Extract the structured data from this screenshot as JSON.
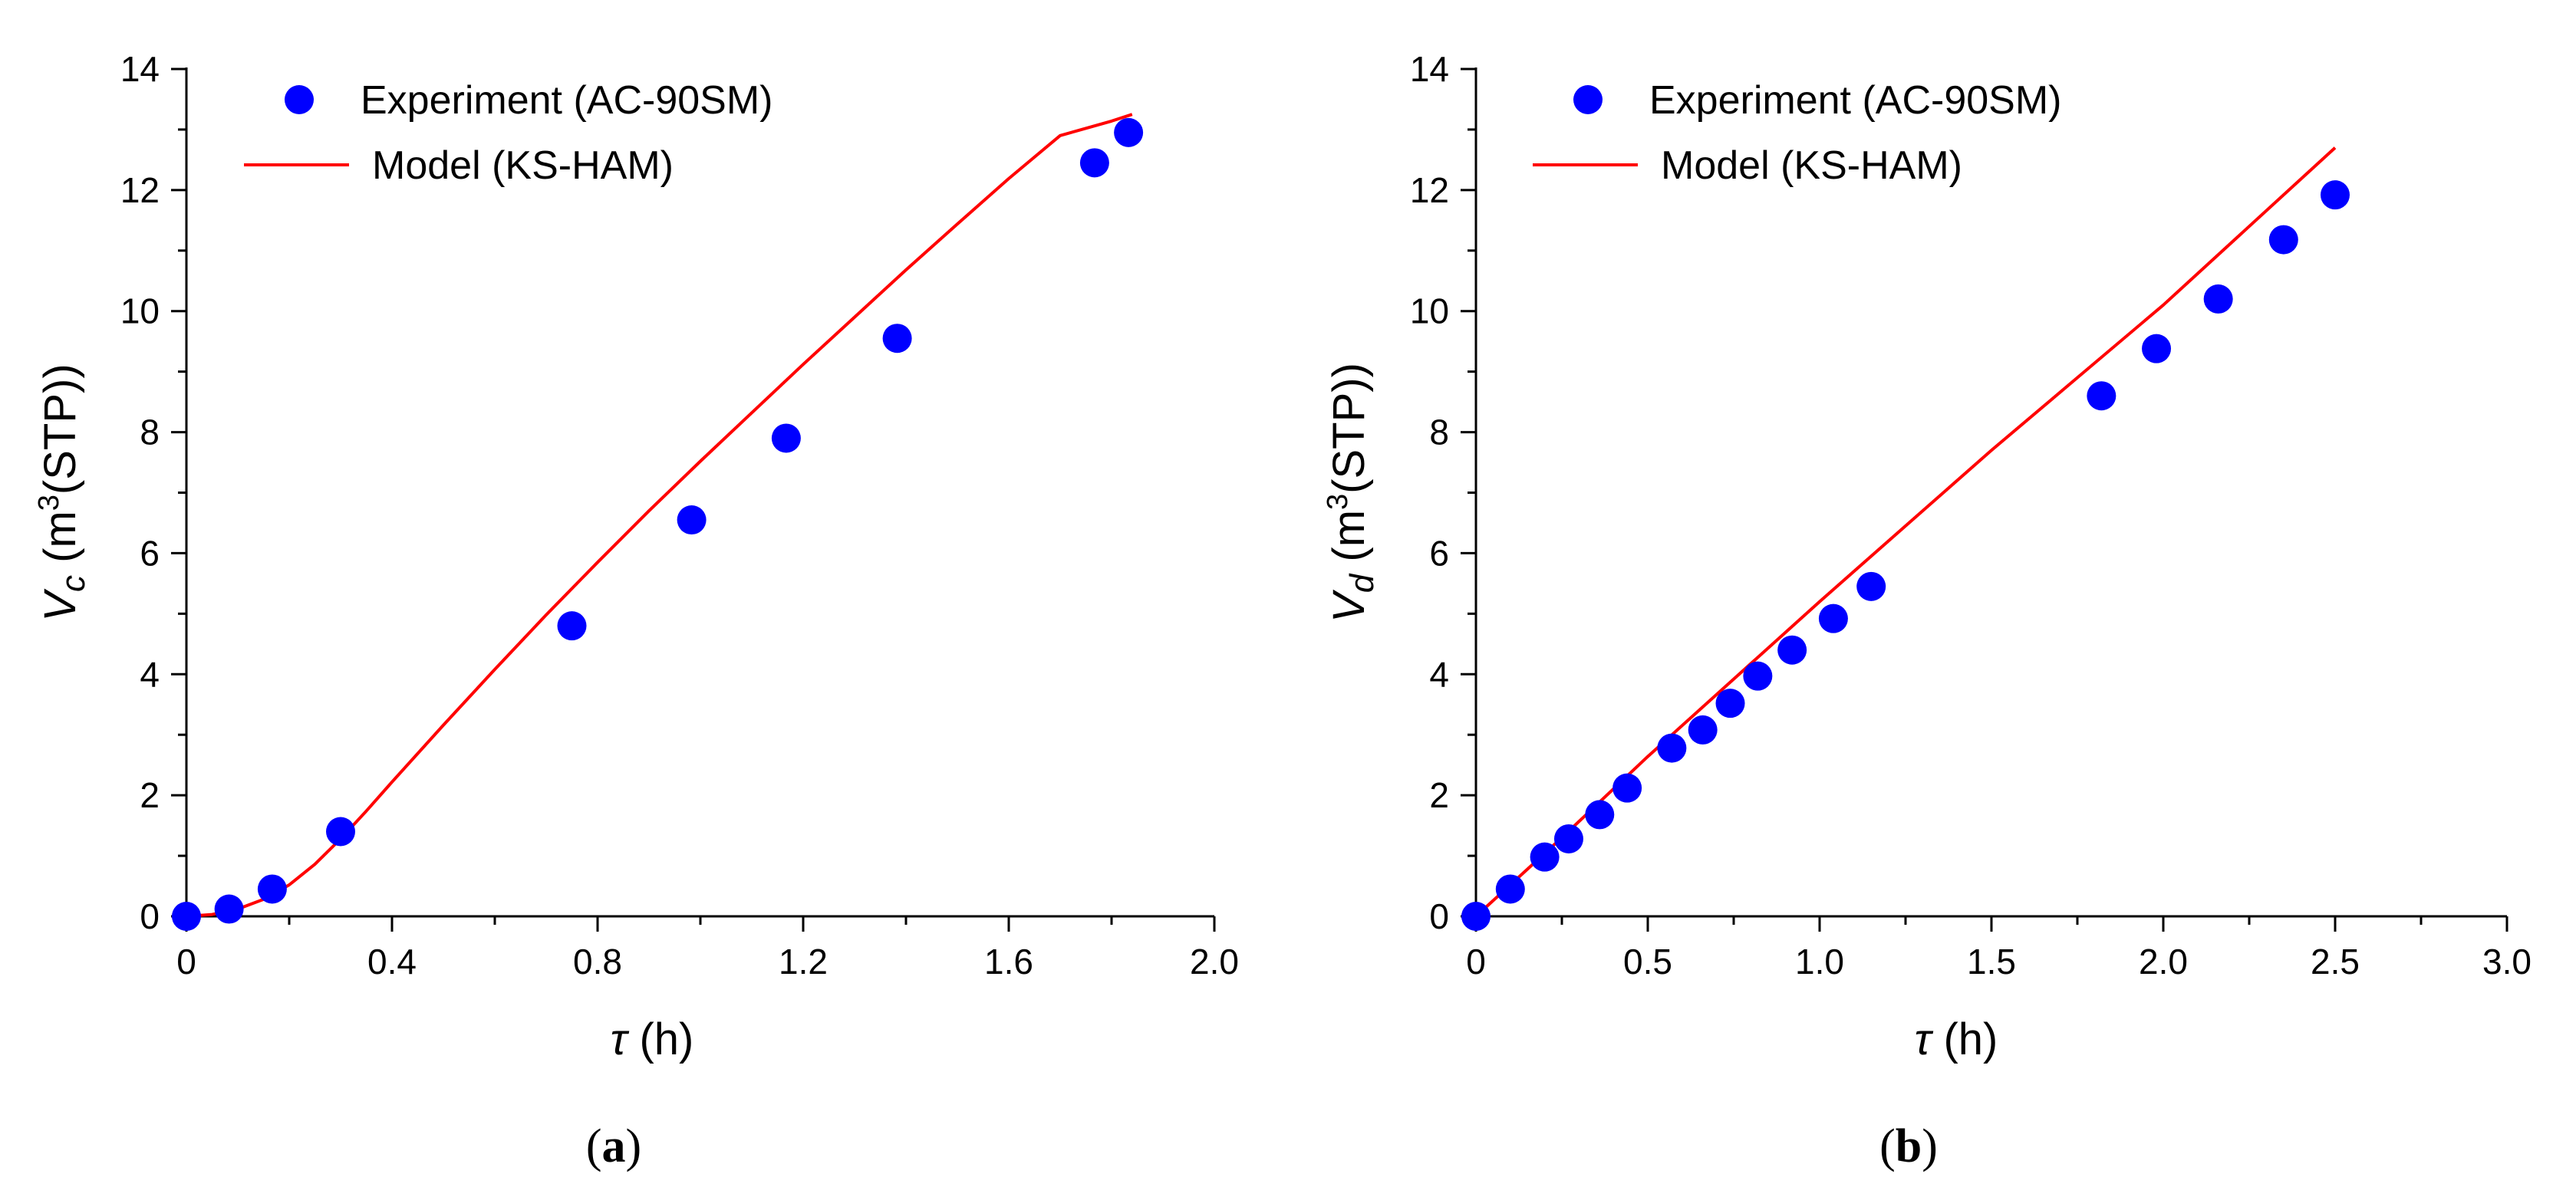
{
  "chart_data": [
    {
      "type": "scatter",
      "panel": "(a)",
      "panel_paren_open": "(",
      "panel_letter": "a",
      "panel_paren_close": ")",
      "xlabel": {
        "symbol": "τ",
        "unit": " (h)"
      },
      "ylabel": {
        "symbol": "V",
        "subscript": "c",
        "prefix": " (m",
        "superscript": "3",
        "suffix": "(STP))"
      },
      "xlim": [
        0,
        2.0
      ],
      "ylim": [
        0,
        14
      ],
      "xticks": [
        0,
        0.4,
        0.8,
        1.2,
        1.6,
        2.0
      ],
      "xtick_labels": [
        "0",
        "0.4",
        "0.8",
        "1.2",
        "1.6",
        "2.0"
      ],
      "yticks": [
        0,
        2,
        4,
        6,
        8,
        10,
        12,
        14
      ],
      "ytick_labels": [
        "0",
        "2",
        "4",
        "6",
        "8",
        "10",
        "12",
        "14"
      ],
      "legend_position": "top-left",
      "series": [
        {
          "name": "Experiment (AC-90SM)",
          "kind": "scatter",
          "color": "#0000ff",
          "x": [
            0.0,
            0.083,
            0.167,
            0.3,
            0.75,
            0.983,
            1.167,
            1.383,
            1.767,
            1.833
          ],
          "y": [
            0.0,
            0.12,
            0.45,
            1.4,
            4.8,
            6.55,
            7.9,
            9.55,
            12.45,
            12.95
          ]
        },
        {
          "name": "Model (KS-HAM)",
          "kind": "line",
          "color": "#ff0000",
          "x": [
            0.0,
            0.05,
            0.1,
            0.15,
            0.2,
            0.25,
            0.3,
            0.35,
            0.4,
            0.5,
            0.6,
            0.7,
            0.8,
            0.9,
            1.0,
            1.1,
            1.2,
            1.3,
            1.4,
            1.5,
            1.6,
            1.7,
            1.8,
            1.84
          ],
          "y": [
            0.0,
            0.03,
            0.12,
            0.28,
            0.52,
            0.86,
            1.28,
            1.74,
            2.22,
            3.16,
            4.08,
            4.98,
            5.85,
            6.7,
            7.52,
            8.32,
            9.12,
            9.9,
            10.68,
            11.44,
            12.19,
            12.9,
            13.14,
            13.25
          ]
        }
      ]
    },
    {
      "type": "scatter",
      "panel": "(b)",
      "panel_paren_open": "(",
      "panel_letter": "b",
      "panel_paren_close": ")",
      "xlabel": {
        "symbol": "τ",
        "unit": " (h)"
      },
      "ylabel": {
        "symbol": "V",
        "subscript": "d",
        "prefix": " (m",
        "superscript": "3",
        "suffix": "(STP))"
      },
      "xlim": [
        0,
        3.0
      ],
      "ylim": [
        0,
        14
      ],
      "xticks": [
        0,
        0.5,
        1.0,
        1.5,
        2.0,
        2.5,
        3.0
      ],
      "xtick_labels": [
        "0",
        "0.5",
        "1.0",
        "1.5",
        "2.0",
        "2.5",
        "3.0"
      ],
      "yticks": [
        0,
        2,
        4,
        6,
        8,
        10,
        12,
        14
      ],
      "ytick_labels": [
        "0",
        "2",
        "4",
        "6",
        "8",
        "10",
        "12",
        "14"
      ],
      "legend_position": "top-left",
      "series": [
        {
          "name": "Experiment (AC-90SM)",
          "kind": "scatter",
          "color": "#0000ff",
          "x": [
            0.0,
            0.1,
            0.2,
            0.27,
            0.36,
            0.44,
            0.57,
            0.66,
            0.74,
            0.82,
            0.92,
            1.04,
            1.15,
            1.82,
            1.98,
            2.16,
            2.35,
            2.5
          ],
          "y": [
            0.0,
            0.45,
            0.98,
            1.28,
            1.68,
            2.12,
            2.78,
            3.08,
            3.52,
            3.97,
            4.4,
            4.92,
            5.45,
            8.6,
            9.38,
            10.2,
            11.18,
            11.92
          ]
        },
        {
          "name": "Model (KS-HAM)",
          "kind": "line",
          "color": "#ff0000",
          "x": [
            0.0,
            0.25,
            0.5,
            0.75,
            1.0,
            1.25,
            1.5,
            1.75,
            2.0,
            2.25,
            2.5
          ],
          "y": [
            0.0,
            1.3,
            2.64,
            3.92,
            5.2,
            6.45,
            7.7,
            8.9,
            10.1,
            11.4,
            12.7
          ]
        }
      ]
    }
  ]
}
